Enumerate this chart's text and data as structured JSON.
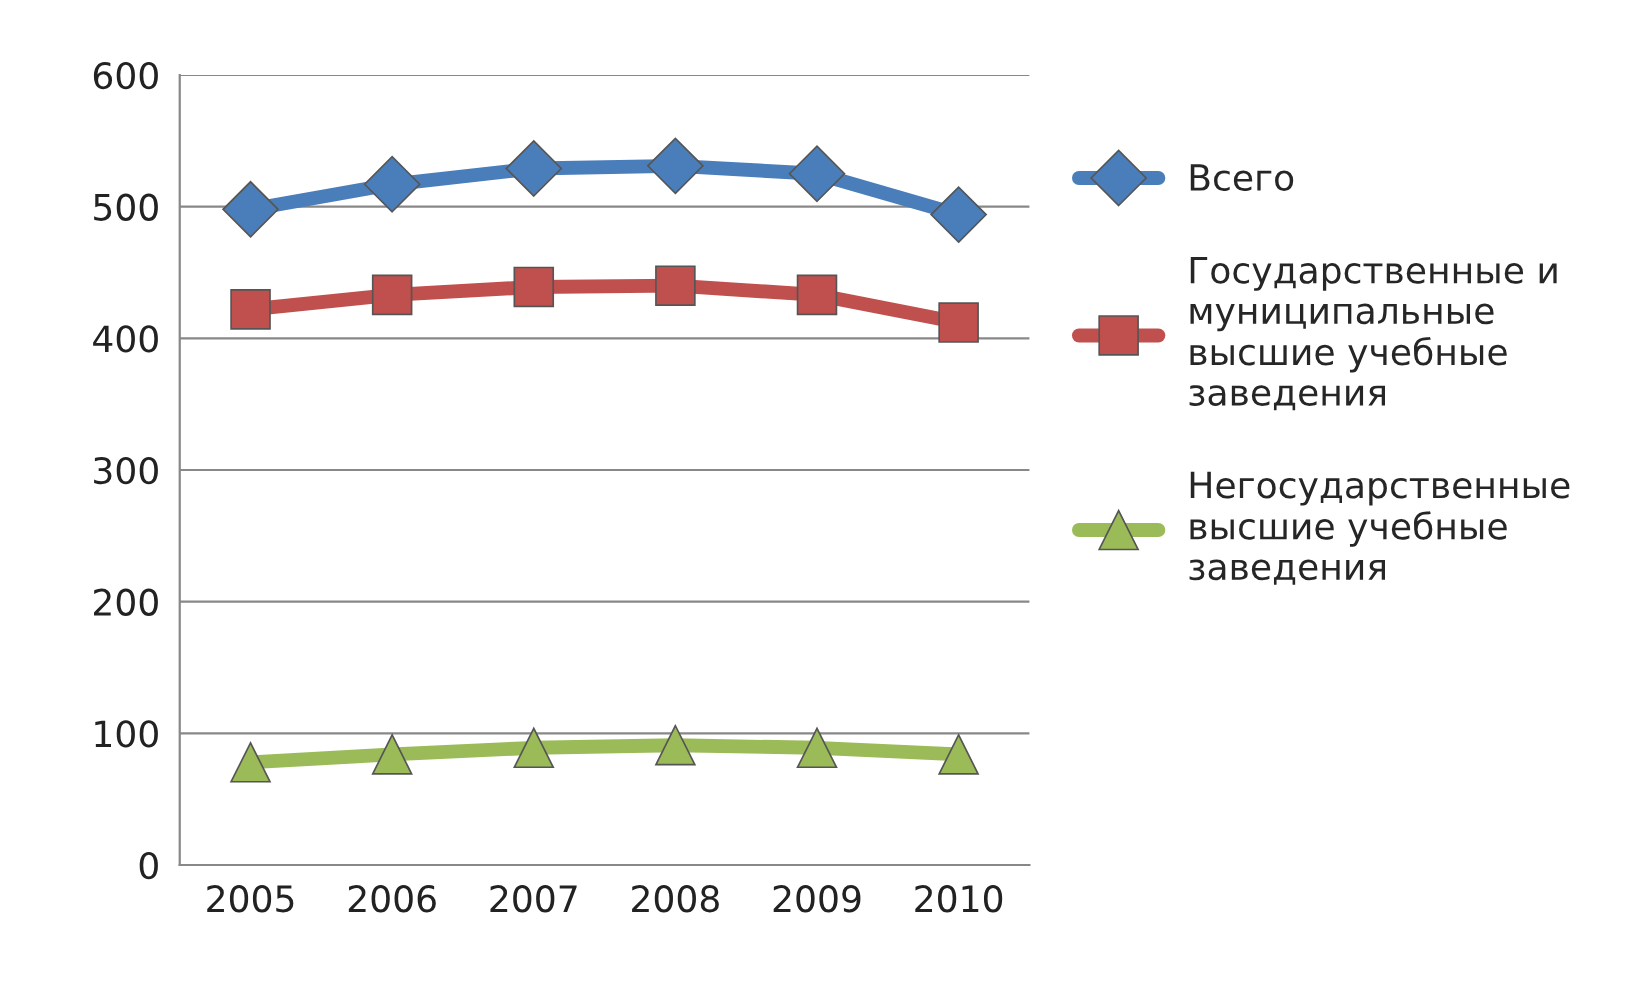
{
  "chart_data": {
    "type": "line",
    "categories": [
      "2005",
      "2006",
      "2007",
      "2008",
      "2009",
      "2010"
    ],
    "series": [
      {
        "name": "Всего",
        "color": "#4a7ebb",
        "marker": "diamond",
        "values": [
          498,
          517,
          529,
          531,
          525,
          494
        ]
      },
      {
        "name": "Государственные и муниципальные высшие учебные заведения",
        "color": "#c0504d",
        "marker": "square",
        "values": [
          422,
          433,
          439,
          440,
          433,
          412
        ]
      },
      {
        "name": "Негосударственные высшие учебные заведения",
        "color": "#9bbb59",
        "marker": "triangle",
        "values": [
          78,
          84,
          89,
          91,
          89,
          84
        ]
      }
    ],
    "ylim": [
      0,
      600
    ],
    "yticks": [
      0,
      100,
      200,
      300,
      400,
      500,
      600
    ],
    "grid": "y",
    "legend": "right"
  }
}
